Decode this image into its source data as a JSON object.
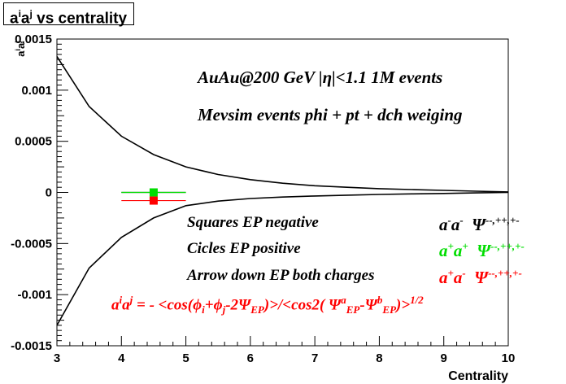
{
  "chart_data": {
    "type": "line",
    "title": {
      "base": "a",
      "sup1": "i",
      "mid": "a",
      "sup2": "j",
      "rest": " vs centrality"
    },
    "xlabel": "Centrality",
    "ylabel": {
      "base": "a",
      "sup1": "i",
      "mid": "a",
      "sup2": "j"
    },
    "xlim": [
      3,
      10
    ],
    "ylim": [
      -0.0015,
      0.0015
    ],
    "x_ticks": [
      "3",
      "4",
      "5",
      "6",
      "7",
      "8",
      "9",
      "10"
    ],
    "y_ticks": [
      "-0.0015",
      "-0.001",
      "-0.0005",
      "0",
      "0.0005",
      "0.001",
      "0.0015"
    ],
    "grid": false,
    "series": [
      {
        "color": "#000000",
        "x": [
          3.0,
          3.5,
          4.0,
          4.5,
          5.0,
          5.5,
          6.0,
          6.5,
          7.0,
          7.5,
          8.0,
          8.5,
          9.0,
          9.5,
          10.0
        ],
        "y": [
          0.00133,
          0.00084,
          0.00055,
          0.00037,
          0.00025,
          0.000175,
          0.000125,
          9e-05,
          6.5e-05,
          5e-05,
          3.7e-05,
          2.8e-05,
          2e-05,
          1.2e-05,
          5e-06
        ]
      },
      {
        "color": "#000000",
        "x": [
          3.0,
          3.5,
          4.0,
          4.5,
          5.0,
          5.5,
          6.0,
          6.5,
          7.0,
          7.5,
          8.0,
          8.5,
          9.0,
          9.5,
          10.0
        ],
        "y": [
          -0.0013,
          -0.00074,
          -0.00044,
          -0.00025,
          -0.00013,
          -8.5e-05,
          -6e-05,
          -4.5e-05,
          -3.5e-05,
          -2.7e-05,
          -2e-05,
          -1.4e-05,
          -1e-05,
          -5e-06,
          0.0
        ]
      }
    ],
    "points": [
      {
        "label": "a-a- (squares)",
        "x": 4.5,
        "y": 0.0,
        "xerr": 0.5,
        "color": "#000000",
        "marker": "none"
      },
      {
        "label": "a+a+",
        "x": 4.5,
        "y": 0.0,
        "xerr": 0.5,
        "color": "#00dd00",
        "marker": "square"
      },
      {
        "label": "a+a-",
        "x": 4.5,
        "y": -8e-05,
        "xerr": 0.5,
        "color": "#ff0000",
        "marker": "square"
      }
    ],
    "annotations": {
      "line1": "AuAu@200 GeV |η|<1.1 1M events",
      "line2": "Mevsim events phi + pt + dch weiging",
      "squares": "Squares EP negative",
      "circles": "Cicles EP positive",
      "arrow": "Arrow down EP both charges",
      "formula": {
        "lhs_a": "a",
        "lhs_i": "i",
        "lhs_a2": "a",
        "lhs_j": "j",
        "eq": " = - <cos(ϕ",
        "sub_i": "i",
        "plus": "+ϕ",
        "sub_j": "j",
        "minus": "-2Ψ",
        "sub_ep": "EP",
        "mid": ")>/<cos2( Ψ",
        "sup_a": "a",
        "sub_ep2": "EP",
        "dash": "-Ψ",
        "sup_b": "b",
        "sub_ep3": "EP",
        "end": ")>",
        "sup_half": "1/2"
      }
    },
    "legend": [
      {
        "label_a": "a",
        "sup1": "-",
        "label_b": "a",
        "sup2": "-",
        "psi": "Ψ",
        "psi_sup": "--,++,+-",
        "color": "#000000"
      },
      {
        "label_a": "a",
        "sup1": "+",
        "label_b": "a",
        "sup2": "+",
        "psi": "Ψ",
        "psi_sup": "--,++,+-",
        "color": "#00dd00"
      },
      {
        "label_a": "a",
        "sup1": "+",
        "label_b": "a",
        "sup2": "-",
        "psi": "Ψ",
        "psi_sup": "--,++,+-",
        "color": "#ff0000"
      }
    ]
  }
}
